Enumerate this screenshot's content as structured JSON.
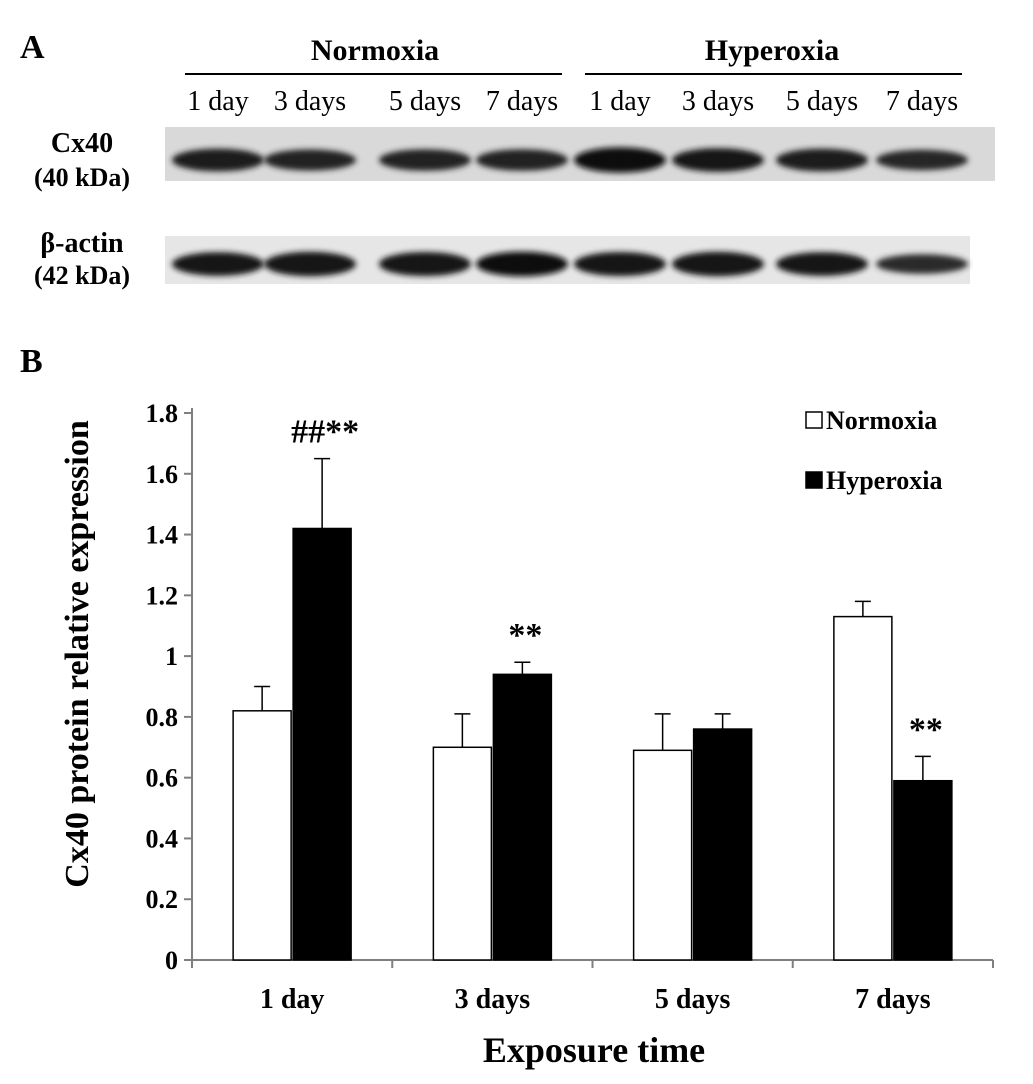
{
  "panel_a": {
    "label": "A",
    "groups": [
      "Normoxia",
      "Hyperoxia"
    ],
    "lanes": [
      "1 day",
      "3 days",
      "5 days",
      "7 days",
      "1 day",
      "3 days",
      "5 days",
      "7 days"
    ],
    "blots": [
      {
        "name": "Cx40",
        "mw": "(40 kDa)",
        "band_intensity": [
          0.8,
          0.7,
          0.72,
          0.72,
          0.95,
          0.85,
          0.8,
          0.65
        ]
      },
      {
        "name": "β-actin",
        "mw": "(42 kDa)",
        "band_intensity": [
          0.85,
          0.9,
          0.88,
          0.92,
          0.88,
          0.9,
          0.85,
          0.6
        ]
      }
    ]
  },
  "panel_b": {
    "label": "B"
  },
  "colors": {
    "normoxia": "#ffffff",
    "hyperoxia": "#000000",
    "axis": "#7f7f7f"
  },
  "chart_data": {
    "type": "bar",
    "categories": [
      "1 day",
      "3 days",
      "5 days",
      "7 days"
    ],
    "series": [
      {
        "name": "Normoxia",
        "values": [
          0.82,
          0.7,
          0.69,
          1.13
        ],
        "errors": [
          0.08,
          0.11,
          0.12,
          0.05
        ],
        "annotations": [
          "",
          "",
          "",
          ""
        ]
      },
      {
        "name": "Hyperoxia",
        "values": [
          1.42,
          0.94,
          0.76,
          0.59
        ],
        "errors": [
          0.23,
          0.04,
          0.05,
          0.08
        ],
        "annotations": [
          "##**",
          "**",
          "",
          "**"
        ]
      }
    ],
    "xlabel": "Exposure time",
    "ylabel": "Cx40 protein relative expression",
    "ylim": [
      0,
      1.8
    ],
    "yticks": [
      "0",
      "0.2",
      "0.4",
      "0.6",
      "0.8",
      "1",
      "1.2",
      "1.4",
      "1.6",
      "1.8"
    ],
    "legend_position": "top-right",
    "grid": false
  }
}
